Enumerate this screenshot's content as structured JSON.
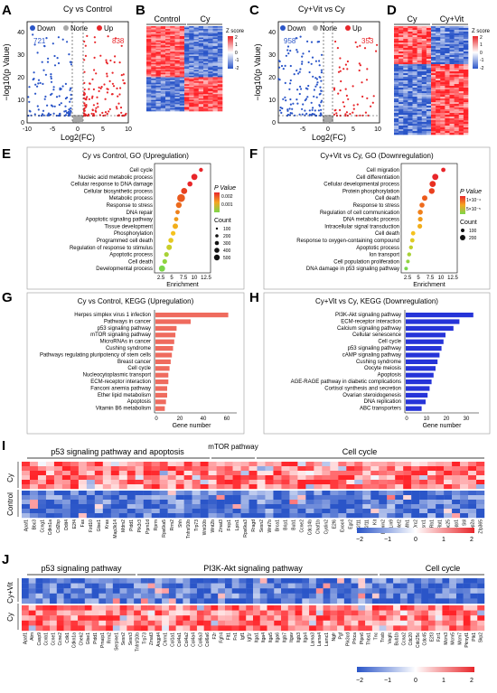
{
  "panels": {
    "A": {
      "letter": "A",
      "title": "Cy vs Control",
      "legend": [
        "Down",
        "None",
        "Up"
      ],
      "count_down": "721",
      "count_up": "838",
      "xlabel": "Log2(FC)",
      "ylabel": "−log10(p Value)",
      "xticks": [
        "-10",
        "-5",
        "0",
        "5",
        "10"
      ],
      "yticks": [
        "0",
        "10",
        "20",
        "30",
        "40"
      ]
    },
    "B": {
      "letter": "B",
      "cols": [
        "Control",
        "Cy"
      ],
      "zlabel": "Z score",
      "zticks": [
        "2",
        "1",
        "0",
        "-1",
        "-2"
      ]
    },
    "C": {
      "letter": "C",
      "title": "Cy+Vit vs Cy",
      "legend": [
        "Down",
        "None",
        "Up"
      ],
      "count_down": "958",
      "count_up": "353",
      "xlabel": "Log2(FC)",
      "ylabel": "−log10(p Value)",
      "xticks": [
        "-5",
        "0",
        "5",
        "10"
      ],
      "yticks": [
        "0",
        "10",
        "20",
        "30",
        "40"
      ]
    },
    "D": {
      "letter": "D",
      "cols": [
        "Cy",
        "Cy+Vit"
      ],
      "zlabel": "Z score",
      "zticks": [
        "2",
        "1",
        "0",
        "-1",
        "-2"
      ]
    },
    "E": {
      "letter": "E",
      "title": "Cy vs Control, GO (Upregulation)",
      "xlabel": "Enrichment",
      "xticks": [
        "2.5",
        "5",
        "7.5",
        "10",
        "12.5"
      ],
      "legend_p_title": "P Value",
      "legend_p_ticks": [
        "0.002",
        "0.001"
      ],
      "legend_count_title": "Count",
      "legend_count_vals": [
        "100",
        "200",
        "300",
        "400",
        "500"
      ],
      "terms": [
        "Cell cycle",
        "Nucleic acid metabolic process",
        "Cellular response to DNA damage",
        "Cellular biosynthetic process",
        "Metabolic process",
        "Response to stress",
        "DNA repair",
        "Apoptotic signaling pathway",
        "Tissue development",
        "Phosphorylation",
        "Programmed cell death",
        "Regulation of response to stimulus",
        "Apoptotic process",
        "Cell death",
        "Developmental process"
      ]
    },
    "F": {
      "letter": "F",
      "title": "Cy+Vit vs Cy, GO (Downregulation)",
      "xlabel": "Enrichment",
      "xticks": [
        "2.5",
        "5",
        "7.5",
        "10",
        "12.5"
      ],
      "legend_p_title": "P Value",
      "legend_p_ticks": [
        "1×10⁻⁴",
        "5×10⁻⁵"
      ],
      "legend_count_title": "Count",
      "legend_count_vals": [
        "100",
        "200"
      ],
      "terms": [
        "Cell migration",
        "Cell differentiation",
        "Cellular developmental process",
        "Protein phosphorylation",
        "Cell death",
        "Response to stress",
        "Regulation of cell communication",
        "DNA metabolic process",
        "Intracellular signal transduction",
        "Cell death",
        "Response to oxygen-containing compound",
        "Apoptotic process",
        "Ion transport",
        "Cell population proliferation",
        "DNA damage in p53 signaling pathway"
      ]
    },
    "G": {
      "letter": "G",
      "title": "Cy vs Control, KEGG (Upregulation)",
      "xlabel": "Gene number",
      "xticks": [
        "0",
        "20",
        "40",
        "60"
      ],
      "terms": [
        "Herpes simplex virus 1 infection",
        "Pathways in cancer",
        "p53 signaling pathway",
        "mTOR signaling pathway",
        "MicroRNAs in cancer",
        "Cushing syndrome",
        "Pathways regulating pluripotency of stem cells",
        "Breast cancer",
        "Cell cycle",
        "Nucleocytoplasmic transport",
        "ECM-receptor interaction",
        "Fanconi anemia pathway",
        "Ether lipid metabolism",
        "Apoptosis",
        "Vitamin B6 metabolism"
      ]
    },
    "H": {
      "letter": "H",
      "title": "Cy+Vit vs Cy, KEGG (Downregulation)",
      "xlabel": "Gene number",
      "xticks": [
        "0",
        "10",
        "20",
        "30"
      ],
      "terms": [
        "PI3K-Akt signaling pathway",
        "ECM-receptor interaction",
        "Calcium signaling pathway",
        "Cellular senescence",
        "Cell cycle",
        "p53 signaling pathway",
        "cAMP signaling pathway",
        "Cushing syndrome",
        "Oocyte meiosis",
        "Apoptosis",
        "AGE-RAGE pathway in diabetic complications",
        "Cortisol synthesis and secretion",
        "Ovarian steroidogenesis",
        "DNA replication",
        "ABC transporters"
      ]
    },
    "I": {
      "letter": "I",
      "groups": [
        "p53 signaling pathway and apoptosis",
        "mTOR pathway",
        "Cell cycle"
      ],
      "rows": [
        "Cy",
        "Control"
      ],
      "scale_ticks": [
        "−2",
        "−1",
        "0",
        "1",
        "2"
      ],
      "genes": [
        "Apaf1",
        "Bbc3",
        "Ccng1",
        "Cdkn1a",
        "Cd2bp",
        "Ddit4",
        "E2f4",
        "Fas",
        "Fzd10",
        "Gtse1",
        "Kras",
        "Map3k14",
        "Mdm2",
        "Pidd1",
        "Pik3r3",
        "Ppm1d",
        "Rprm",
        "Rps6ka5",
        "Rrm2",
        "Shh",
        "Tnfrsf10b",
        "Trp73",
        "Wnt10b",
        "Wnt2b",
        "Zmat3",
        "Fnip1",
        "Lpin1",
        "Rps6ka3",
        "Rragd",
        "Sesn2",
        "Wnt7b",
        "Brca1",
        "Brip1",
        "Bub1",
        "Ccne2",
        "Cdc14b",
        "Chaf1b",
        "Cyclin2",
        "E2f6",
        "Exoc4",
        "Egr2",
        "Kif11",
        "Kif11",
        "Kit",
        "Lamin2",
        "Lin9",
        "Mef2",
        "Mlh1",
        "Orc2",
        "Psrc1",
        "Rb1",
        "Rbl1",
        "Spc25",
        "Spp1",
        "Stil",
        "Top2a",
        "Zfp365"
      ]
    },
    "J": {
      "letter": "J",
      "groups": [
        "p53 signaling pathway",
        "PI3K-Akt signaling pathway",
        "Cell cycle"
      ],
      "rows": [
        "Cy+Vit",
        "Cy"
      ],
      "scale_ticks": [
        "−2",
        "−1",
        "0",
        "1",
        "2"
      ],
      "genes": [
        "Apaf1",
        "Atm",
        "Casp9",
        "Ccnb1",
        "Ccne1",
        "Ccne2",
        "Cdk1",
        "Cdkn1a",
        "Chek2",
        "Gtse1",
        "Pidd1",
        "Pmaip1",
        "Rrm2",
        "Serpine1",
        "Sesn2",
        "Sesn3",
        "Tnfrsf10b",
        "Trp73",
        "Zmat3",
        "Angpt4",
        "Chrm1",
        "Col1a1",
        "Col4a1",
        "Col4a2",
        "Col4a4",
        "Col6a3",
        "Col6a6",
        "F2r",
        "Fgfr4",
        "Flt1",
        "Fn1",
        "Igf1",
        "Igf1r",
        "Itga1",
        "Itga4",
        "Itga5",
        "Itga6",
        "Itgb7",
        "Itgav",
        "Itgb3",
        "Itga4",
        "Lama3",
        "Lama4",
        "Lamc1",
        "Ngfr",
        "Pgf",
        "Pik3cd",
        "Prkca",
        "Ptpn6",
        "Thbs1",
        "Tnc",
        "Tnxb",
        "Vegfc",
        "Bub1b",
        "Ccna2",
        "Cdc20",
        "Cdc25c",
        "Cdc45",
        "E2f3",
        "Fzr1",
        "Mcm3",
        "Mcm5",
        "Mcm7",
        "Pkmyt1",
        "Plk1",
        "Skp2"
      ]
    }
  },
  "colors": {
    "up": "#e8262a",
    "down": "#2a55c8",
    "none": "#a8a8a8",
    "kegg_up": "#ef6b5e",
    "kegg_down": "#2634d8"
  },
  "heatmap_seed_note": ""
}
